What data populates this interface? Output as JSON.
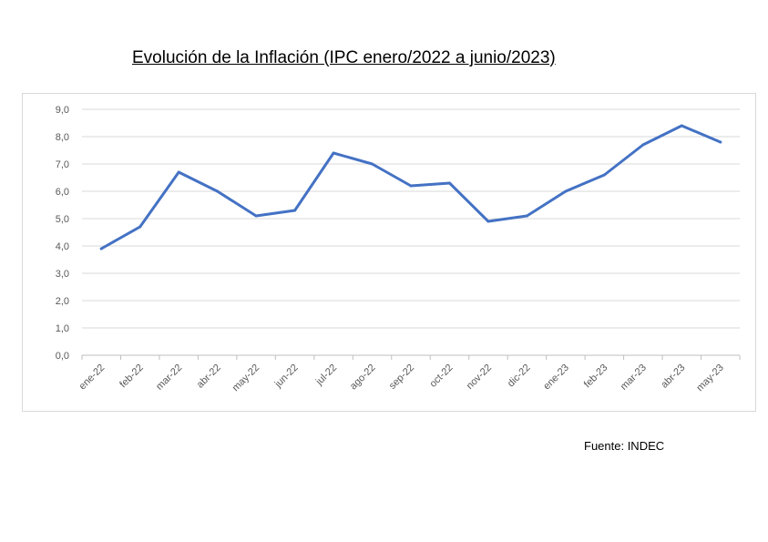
{
  "title": "Evolución de la Inflación (IPC enero/2022 a junio/2023)",
  "source": "Fuente: INDEC",
  "colors": {
    "line": "#4472c4",
    "grid": "#d9d9d9",
    "axis": "#bfbfbf",
    "text": "#595959"
  },
  "chart_data": {
    "type": "line",
    "title": "Evolución de la Inflación (IPC enero/2022 a junio/2023)",
    "xlabel": "",
    "ylabel": "",
    "categories": [
      "ene-22",
      "feb-22",
      "mar-22",
      "abr-22",
      "may-22",
      "jun-22",
      "jul-22",
      "ago-22",
      "sep-22",
      "oct-22",
      "nov-22",
      "dic-22",
      "ene-23",
      "feb-23",
      "mar-23",
      "abr-23",
      "may-23"
    ],
    "values": [
      3.9,
      4.7,
      6.7,
      6.0,
      5.1,
      5.3,
      7.4,
      7.0,
      6.2,
      6.3,
      4.9,
      5.1,
      6.0,
      6.6,
      7.7,
      8.4,
      7.8
    ],
    "ylim": [
      0,
      9
    ],
    "yticks": [
      "0,0",
      "1,0",
      "2,0",
      "3,0",
      "4,0",
      "5,0",
      "6,0",
      "7,0",
      "8,0",
      "9,0"
    ],
    "grid": true,
    "legend": "none"
  }
}
